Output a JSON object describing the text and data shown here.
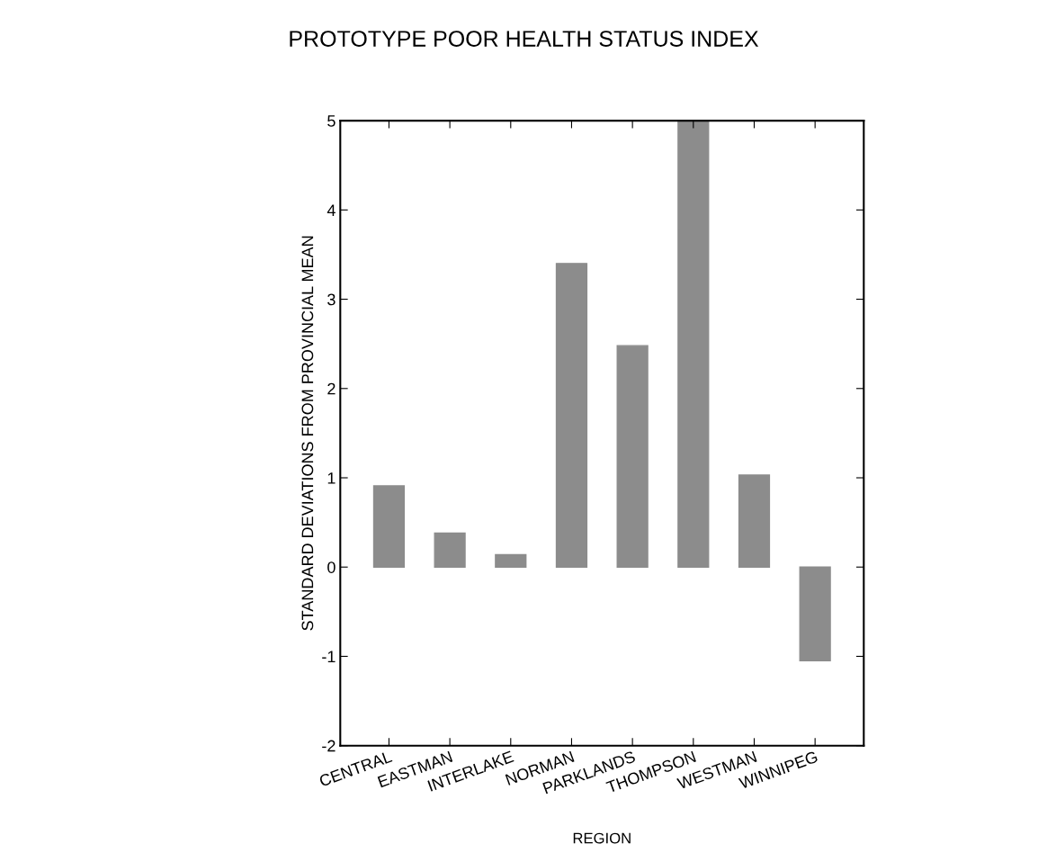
{
  "chart_data": {
    "type": "bar",
    "title": "PROTOTYPE POOR HEALTH STATUS INDEX",
    "xlabel": "REGION",
    "ylabel": "STANDARD DEVIATIONS FROM PROVINCIAL MEAN",
    "categories": [
      "CENTRAL",
      "EASTMAN",
      "INTERLAKE",
      "NORMAN",
      "PARKLANDS",
      "THOMPSON",
      "WESTMAN",
      "WINNIPEG"
    ],
    "values": [
      0.91,
      0.38,
      0.14,
      3.4,
      2.48,
      5,
      1.03,
      -1.05
    ],
    "color": "#8c8c8c",
    "ylim": [
      -2,
      5
    ],
    "yticks": [
      -2,
      -1,
      0,
      1,
      2,
      3,
      4,
      5
    ],
    "grid": false
  }
}
